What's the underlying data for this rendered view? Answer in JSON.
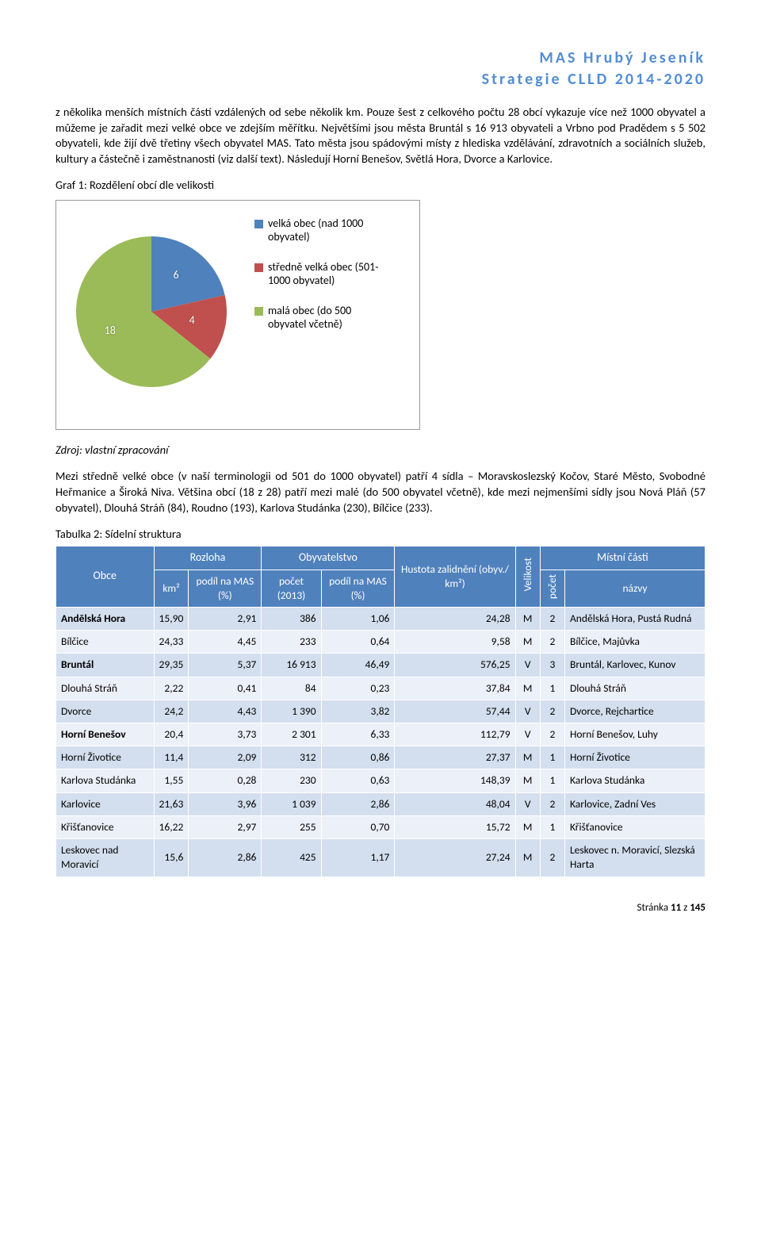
{
  "header": {
    "line1": "MAS Hrubý Jeseník",
    "line2": "Strategie CLLD 2014-2020"
  },
  "para1": "z několika menších místních částí vzdálených od sebe několik km. Pouze šest z celkového počtu 28 obcí vykazuje více než 1000 obyvatel a můžeme je zařadit mezi velké obce ve zdejším měřítku. Největšími jsou města Bruntál s 16 913 obyvateli a Vrbno pod Pradědem s 5 502 obyvateli, kde žijí dvě třetiny všech obyvatel MAS. Tato města jsou spádovými místy z hlediska vzdělávání, zdravotních a sociálních služeb, kultury a částečně i zaměstnanosti (viz další text). Následují Horní Benešov, Světlá Hora, Dvorce a Karlovice.",
  "graf_title": "Graf 1: Rozdělení obcí dle velikosti",
  "pie": {
    "slices": [
      {
        "value": 6,
        "color": "#4f81bd",
        "label": "6"
      },
      {
        "value": 4,
        "color": "#c0504d",
        "label": "4"
      },
      {
        "value": 18,
        "color": "#9bbb59",
        "label": "18"
      }
    ],
    "legend": [
      {
        "color": "#4f81bd",
        "text": "velká obec (nad 1000 obyvatel)"
      },
      {
        "color": "#c0504d",
        "text": "středně velká obec (501-1000 obyvatel)"
      },
      {
        "color": "#9bbb59",
        "text": "malá obec (do 500 obyvatel včetně)"
      }
    ]
  },
  "source": "Zdroj: vlastní zpracování",
  "para2": "Mezi středně velké obce (v naší terminologii od 501 do 1000 obyvatel) patří 4 sídla – Moravskoslezský Kočov, Staré Město, Svobodné Heřmanice a Široká Niva. Většina obcí (18 z 28) patří mezi malé (do 500 obyvatel včetně), kde mezi nejmenšími sídly jsou Nová Pláň (57 obyvatel), Dlouhá Stráň (84), Roudno (193), Karlova Studánka (230), Bílčice (233).",
  "tab_title": "Tabulka 2: Sídelní struktura",
  "thead": {
    "obce": "Obce",
    "rozloha": "Rozloha",
    "obyv": "Obyvatelstvo",
    "hustota": "Hustota zalidnění (obyv./ km²)",
    "velikost": "Velikost",
    "mistni": "Místní části",
    "km2": "km²",
    "podil": "podíl na MAS (%)",
    "pocet2013": "počet (2013)",
    "pocet": "počet",
    "nazvy": "názvy"
  },
  "rows": [
    {
      "bold": true,
      "obec": "Andělská Hora",
      "km2": "15,90",
      "pmas1": "2,91",
      "poc": "386",
      "pmas2": "1,06",
      "hust": "24,28",
      "vel": "M",
      "cnt": "2",
      "naz": "Andělská Hora, Pustá Rudná"
    },
    {
      "bold": false,
      "obec": "Bílčice",
      "km2": "24,33",
      "pmas1": "4,45",
      "poc": "233",
      "pmas2": "0,64",
      "hust": "9,58",
      "vel": "M",
      "cnt": "2",
      "naz": "Bílčice, Majůvka"
    },
    {
      "bold": true,
      "obec": "Bruntál",
      "km2": "29,35",
      "pmas1": "5,37",
      "poc": "16 913",
      "pmas2": "46,49",
      "hust": "576,25",
      "vel": "V",
      "cnt": "3",
      "naz": "Bruntál, Karlovec, Kunov"
    },
    {
      "bold": false,
      "obec": "Dlouhá Stráň",
      "km2": "2,22",
      "pmas1": "0,41",
      "poc": "84",
      "pmas2": "0,23",
      "hust": "37,84",
      "vel": "M",
      "cnt": "1",
      "naz": "Dlouhá Stráň"
    },
    {
      "bold": false,
      "obec": "Dvorce",
      "km2": "24,2",
      "pmas1": "4,43",
      "poc": "1 390",
      "pmas2": "3,82",
      "hust": "57,44",
      "vel": "V",
      "cnt": "2",
      "naz": "Dvorce, Rejchartice"
    },
    {
      "bold": true,
      "obec": "Horní Benešov",
      "km2": "20,4",
      "pmas1": "3,73",
      "poc": "2 301",
      "pmas2": "6,33",
      "hust": "112,79",
      "vel": "V",
      "cnt": "2",
      "naz": "Horní Benešov, Luhy"
    },
    {
      "bold": false,
      "obec": "Horní Životice",
      "km2": "11,4",
      "pmas1": "2,09",
      "poc": "312",
      "pmas2": "0,86",
      "hust": "27,37",
      "vel": "M",
      "cnt": "1",
      "naz": "Horní Životice"
    },
    {
      "bold": false,
      "obec": "Karlova Studánka",
      "km2": "1,55",
      "pmas1": "0,28",
      "poc": "230",
      "pmas2": "0,63",
      "hust": "148,39",
      "vel": "M",
      "cnt": "1",
      "naz": "Karlova Studánka"
    },
    {
      "bold": false,
      "obec": "Karlovice",
      "km2": "21,63",
      "pmas1": "3,96",
      "poc": "1 039",
      "pmas2": "2,86",
      "hust": "48,04",
      "vel": "V",
      "cnt": "2",
      "naz": "Karlovice, Zadní Ves"
    },
    {
      "bold": false,
      "obec": "Křišťanovice",
      "km2": "16,22",
      "pmas1": "2,97",
      "poc": "255",
      "pmas2": "0,70",
      "hust": "15,72",
      "vel": "M",
      "cnt": "1",
      "naz": "Křišťanovice"
    },
    {
      "bold": false,
      "obec": "Leskovec nad Moravicí",
      "km2": "15,6",
      "pmas1": "2,86",
      "poc": "425",
      "pmas2": "1,17",
      "hust": "27,24",
      "vel": "M",
      "cnt": "2",
      "naz": "Leskovec n. Moravicí, Slezská Harta"
    }
  ],
  "footer": {
    "text": "Stránka ",
    "pg": "11",
    "of": " z ",
    "total": "145"
  }
}
